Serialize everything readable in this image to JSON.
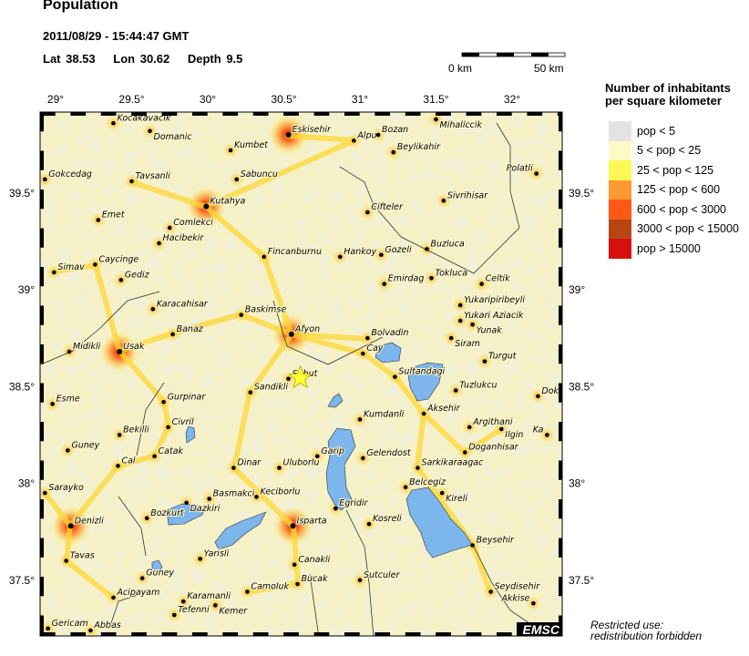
{
  "header": {
    "title": "Population",
    "datetime": "2011/08/29 - 15:44:47 GMT",
    "lat": "Lat 38.53",
    "lon": "Lon 30.62",
    "depth": "Depth  9.5"
  },
  "scale_bar": {
    "start_label": "0 km",
    "end_label": "50 km"
  },
  "axes": {
    "lon_ticks": [
      "29°",
      "29.5°",
      "30°",
      "30.5°",
      "31°",
      "31.5°",
      "32°"
    ],
    "lon_values": [
      29,
      29.5,
      30,
      30.5,
      31,
      31.5,
      32
    ],
    "lat_ticks": [
      "39.5°",
      "39°",
      "38.5°",
      "38°",
      "37.5°"
    ],
    "lat_values": [
      39.5,
      39,
      38.5,
      38,
      37.5
    ],
    "lon_range": [
      28.9,
      32.35
    ],
    "lat_range": [
      37.2,
      39.92
    ]
  },
  "epicenter": {
    "lat": 38.53,
    "lon": 30.62,
    "color": "#ffff33",
    "icon": "star-icon"
  },
  "legend": {
    "title_line1": "Number of inhabitants",
    "title_line2": "per square kilometer",
    "items": [
      {
        "label": "pop < 5",
        "color": "#e3e3e3"
      },
      {
        "label": "5 < pop < 25",
        "color": "#fdfac8"
      },
      {
        "label": "25 < pop < 125",
        "color": "#fdf855"
      },
      {
        "label": "125 < pop < 600",
        "color": "#fb9a2e"
      },
      {
        "label": "600 < pop < 3000",
        "color": "#fb5a16"
      },
      {
        "label": "3000 < pop < 15000",
        "color": "#b84612"
      },
      {
        "label": "pop > 15000",
        "color": "#d8100e"
      }
    ]
  },
  "colors": {
    "water": "#7cb6ec",
    "background": "#f6f1c4"
  },
  "towns": [
    {
      "name": "Kocakavacik",
      "lon": 29.38,
      "lat": 39.86
    },
    {
      "name": "Domanic",
      "lon": 29.62,
      "lat": 39.82
    },
    {
      "name": "Kumbet",
      "lon": 30.15,
      "lat": 39.72
    },
    {
      "name": "Eskisehir",
      "lon": 30.53,
      "lat": 39.8,
      "big": true
    },
    {
      "name": "Alpu",
      "lon": 30.96,
      "lat": 39.77
    },
    {
      "name": "Bozan",
      "lon": 31.12,
      "lat": 39.8
    },
    {
      "name": "Mihaliccik",
      "lon": 31.5,
      "lat": 39.88
    },
    {
      "name": "Beylikahir",
      "lon": 31.22,
      "lat": 39.71
    },
    {
      "name": "Gokcedag",
      "lon": 28.93,
      "lat": 39.57
    },
    {
      "name": "Tavsanli",
      "lon": 29.5,
      "lat": 39.56
    },
    {
      "name": "Sabuncu",
      "lon": 30.19,
      "lat": 39.57
    },
    {
      "name": "Kutahya",
      "lon": 29.99,
      "lat": 39.43,
      "big": true
    },
    {
      "name": "Polatli",
      "lon": 32.16,
      "lat": 39.6
    },
    {
      "name": "Sivrihisar",
      "lon": 31.55,
      "lat": 39.46
    },
    {
      "name": "Emet",
      "lon": 29.28,
      "lat": 39.36
    },
    {
      "name": "Cifteler",
      "lon": 31.05,
      "lat": 39.4
    },
    {
      "name": "Comlekci",
      "lon": 29.75,
      "lat": 39.32
    },
    {
      "name": "Hacibekir",
      "lon": 29.68,
      "lat": 39.24
    },
    {
      "name": "Fincanburnu",
      "lon": 30.37,
      "lat": 39.17
    },
    {
      "name": "Hankoy",
      "lon": 30.87,
      "lat": 39.17
    },
    {
      "name": "Gozeli",
      "lon": 31.14,
      "lat": 39.18
    },
    {
      "name": "Buzluca",
      "lon": 31.44,
      "lat": 39.21
    },
    {
      "name": "Simav",
      "lon": 28.99,
      "lat": 39.09
    },
    {
      "name": "Caycinge",
      "lon": 29.26,
      "lat": 39.13
    },
    {
      "name": "Gediz",
      "lon": 29.43,
      "lat": 39.05
    },
    {
      "name": "Emirdag",
      "lon": 31.16,
      "lat": 39.03
    },
    {
      "name": "Tokluca",
      "lon": 31.47,
      "lat": 39.06
    },
    {
      "name": "Celtik",
      "lon": 31.8,
      "lat": 39.03
    },
    {
      "name": "Karacahisar",
      "lon": 29.64,
      "lat": 38.9
    },
    {
      "name": "Yukaripiribeyli",
      "lon": 31.66,
      "lat": 38.92
    },
    {
      "name": "Baskimse",
      "lon": 30.22,
      "lat": 38.87
    },
    {
      "name": "Yukari Aziacik",
      "lon": 31.66,
      "lat": 38.84
    },
    {
      "name": "Yunak",
      "lon": 31.74,
      "lat": 38.82
    },
    {
      "name": "Banaz",
      "lon": 29.77,
      "lat": 38.77
    },
    {
      "name": "Afyon",
      "lon": 30.55,
      "lat": 38.77,
      "big": true
    },
    {
      "name": "Bolvadin",
      "lon": 31.05,
      "lat": 38.75
    },
    {
      "name": "Siram",
      "lon": 31.6,
      "lat": 38.75
    },
    {
      "name": "Midikli",
      "lon": 29.09,
      "lat": 38.68
    },
    {
      "name": "Usak",
      "lon": 29.42,
      "lat": 38.68,
      "big": true
    },
    {
      "name": "Cay",
      "lon": 31.02,
      "lat": 38.67
    },
    {
      "name": "Turgut",
      "lon": 31.82,
      "lat": 38.63
    },
    {
      "name": "Sultandagi",
      "lon": 31.23,
      "lat": 38.55
    },
    {
      "name": "Suhut",
      "lon": 30.53,
      "lat": 38.54
    },
    {
      "name": "Sandikli",
      "lon": 30.28,
      "lat": 38.47
    },
    {
      "name": "Tuzlukcu",
      "lon": 31.63,
      "lat": 38.48
    },
    {
      "name": "Dok",
      "lon": 32.17,
      "lat": 38.45
    },
    {
      "name": "Gurpinar",
      "lon": 29.71,
      "lat": 38.42
    },
    {
      "name": "Esme",
      "lon": 28.98,
      "lat": 38.41
    },
    {
      "name": "Aksehir",
      "lon": 31.42,
      "lat": 38.36
    },
    {
      "name": "Kumdanli",
      "lon": 31.0,
      "lat": 38.33
    },
    {
      "name": "Civril",
      "lon": 29.74,
      "lat": 38.29
    },
    {
      "name": "Argithani",
      "lon": 31.72,
      "lat": 38.29
    },
    {
      "name": "Ilgin",
      "lon": 31.93,
      "lat": 38.28
    },
    {
      "name": "Ka",
      "lon": 32.23,
      "lat": 38.25
    },
    {
      "name": "Bekilli",
      "lon": 29.42,
      "lat": 38.25
    },
    {
      "name": "Guney",
      "lon": 29.08,
      "lat": 38.17
    },
    {
      "name": "Catak",
      "lon": 29.65,
      "lat": 38.14
    },
    {
      "name": "Garip",
      "lon": 30.72,
      "lat": 38.14
    },
    {
      "name": "Gelendost",
      "lon": 31.02,
      "lat": 38.13
    },
    {
      "name": "Doganhisar",
      "lon": 31.69,
      "lat": 38.16
    },
    {
      "name": "Cal",
      "lon": 29.41,
      "lat": 38.09
    },
    {
      "name": "Dinar",
      "lon": 30.17,
      "lat": 38.08
    },
    {
      "name": "Uluborlu",
      "lon": 30.47,
      "lat": 38.08
    },
    {
      "name": "Sarkikaraagac",
      "lon": 31.38,
      "lat": 38.08
    },
    {
      "name": "Sarayko",
      "lon": 28.93,
      "lat": 37.95
    },
    {
      "name": "Basmakci",
      "lon": 30.01,
      "lat": 37.92
    },
    {
      "name": "Keciborlu",
      "lon": 30.32,
      "lat": 37.93
    },
    {
      "name": "Dazkiri",
      "lon": 29.86,
      "lat": 37.9
    },
    {
      "name": "Belcegiz",
      "lon": 31.3,
      "lat": 37.98
    },
    {
      "name": "Kireli",
      "lon": 31.54,
      "lat": 37.95
    },
    {
      "name": "Bozkurt",
      "lon": 29.6,
      "lat": 37.82
    },
    {
      "name": "Egridir",
      "lon": 30.84,
      "lat": 37.87
    },
    {
      "name": "Denizli",
      "lon": 29.1,
      "lat": 37.78,
      "big": true
    },
    {
      "name": "Isparta",
      "lon": 30.56,
      "lat": 37.78,
      "big": true
    },
    {
      "name": "Kosreli",
      "lon": 31.06,
      "lat": 37.79
    },
    {
      "name": "Beysehir",
      "lon": 31.74,
      "lat": 37.68
    },
    {
      "name": "Yarisli",
      "lon": 29.95,
      "lat": 37.61
    },
    {
      "name": "Tavas",
      "lon": 29.07,
      "lat": 37.6
    },
    {
      "name": "Canakli",
      "lon": 30.57,
      "lat": 37.58
    },
    {
      "name": "Guney",
      "lon": 29.57,
      "lat": 37.51
    },
    {
      "name": "Camoluk",
      "lon": 30.26,
      "lat": 37.44
    },
    {
      "name": "Bucak",
      "lon": 30.59,
      "lat": 37.48
    },
    {
      "name": "Sutculer",
      "lon": 31.0,
      "lat": 37.5
    },
    {
      "name": "Seydisehir",
      "lon": 31.86,
      "lat": 37.44
    },
    {
      "name": "Acipayam",
      "lon": 29.38,
      "lat": 37.41
    },
    {
      "name": "Karamanli",
      "lon": 29.84,
      "lat": 37.39
    },
    {
      "name": "Kemer",
      "lon": 30.05,
      "lat": 37.37
    },
    {
      "name": "Akkise",
      "lon": 32.14,
      "lat": 37.38
    },
    {
      "name": "Tefenni",
      "lon": 29.78,
      "lat": 37.32
    },
    {
      "name": "Gericam",
      "lon": 28.95,
      "lat": 37.25
    },
    {
      "name": "Abbas",
      "lon": 29.23,
      "lat": 37.24
    }
  ],
  "branding": {
    "logo": "EMSC"
  },
  "notice": {
    "line1": "Restricted use:",
    "line2": "redistribution forbidden"
  }
}
